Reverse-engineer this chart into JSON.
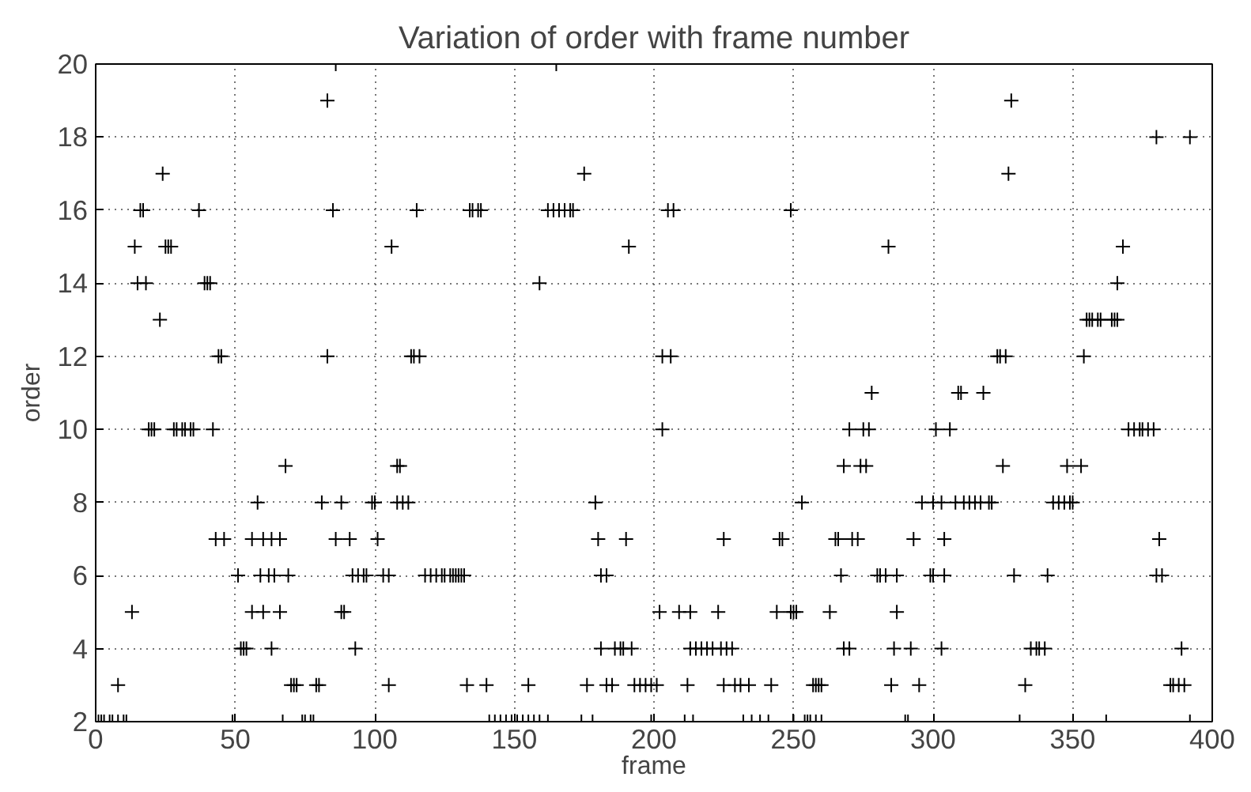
{
  "chart_data": {
    "type": "scatter",
    "title": "Variation of order with frame number",
    "xlabel": "frame",
    "ylabel": "order",
    "xlim": [
      0,
      400
    ],
    "ylim": [
      2,
      20
    ],
    "xticks": [
      0,
      50,
      100,
      150,
      200,
      250,
      300,
      350,
      400
    ],
    "yticks": [
      2,
      4,
      6,
      8,
      10,
      12,
      14,
      16,
      18,
      20
    ],
    "grid": true,
    "marker": "cross",
    "series": [
      {
        "color": "#000000",
        "x": [
          86,
          165,
          83,
          328,
          380,
          392,
          24,
          175,
          327,
          16,
          17,
          37,
          85,
          115,
          134,
          135,
          137,
          138,
          162,
          164,
          166,
          168,
          170,
          171,
          205,
          207,
          249,
          14,
          25,
          26,
          27,
          106,
          191,
          284,
          368,
          15,
          18,
          39,
          40,
          41,
          159,
          366,
          23,
          355,
          356,
          357,
          359,
          360,
          364,
          365,
          366,
          44,
          45,
          83,
          113,
          114,
          116,
          203,
          206,
          323,
          324,
          326,
          354,
          278,
          309,
          310,
          318,
          19,
          20,
          21,
          28,
          29,
          31,
          32,
          34,
          35,
          42,
          203,
          270,
          275,
          277,
          301,
          306,
          370,
          372,
          374,
          375,
          377,
          379,
          68,
          108,
          109,
          268,
          274,
          276,
          325,
          348,
          353,
          58,
          81,
          88,
          99,
          100,
          108,
          110,
          112,
          179,
          253,
          296,
          300,
          303,
          308,
          311,
          313,
          315,
          317,
          320,
          321,
          343,
          345,
          347,
          349,
          350,
          43,
          46,
          56,
          60,
          63,
          66,
          86,
          91,
          101,
          180,
          190,
          225,
          245,
          246,
          265,
          266,
          271,
          273,
          293,
          304,
          381,
          51,
          59,
          62,
          64,
          69,
          92,
          94,
          96,
          97,
          103,
          105,
          118,
          120,
          122,
          124,
          125,
          127,
          128,
          129,
          130,
          131,
          132,
          181,
          183,
          267,
          280,
          281,
          283,
          287,
          299,
          300,
          304,
          329,
          341,
          380,
          382,
          13,
          56,
          60,
          66,
          88,
          89,
          202,
          209,
          213,
          223,
          244,
          249,
          250,
          251,
          263,
          287,
          52,
          53,
          54,
          63,
          93,
          181,
          186,
          188,
          189,
          192,
          213,
          215,
          217,
          219,
          221,
          224,
          226,
          228,
          268,
          270,
          286,
          292,
          303,
          335,
          337,
          338,
          340,
          389,
          8,
          70,
          71,
          72,
          79,
          80,
          105,
          133,
          140,
          155,
          176,
          183,
          185,
          193,
          195,
          197,
          199,
          201,
          212,
          225,
          229,
          231,
          234,
          242,
          257,
          258,
          259,
          260,
          285,
          295,
          333,
          385,
          386,
          388,
          390,
          1,
          2,
          3,
          5,
          6,
          8,
          10,
          11,
          49,
          67,
          74,
          75,
          77,
          78,
          141,
          143,
          145,
          147,
          149,
          151,
          153,
          155,
          157,
          159,
          162,
          174,
          178,
          199,
          211,
          214,
          232,
          235,
          238,
          241,
          250,
          254,
          255,
          256,
          258,
          260,
          290,
          291,
          331,
          362,
          392
        ],
        "values": [
          20,
          20,
          19,
          19,
          18,
          18,
          17,
          17,
          17,
          16,
          16,
          16,
          16,
          16,
          16,
          16,
          16,
          16,
          16,
          16,
          16,
          16,
          16,
          16,
          16,
          16,
          16,
          15,
          15,
          15,
          15,
          15,
          15,
          15,
          15,
          14,
          14,
          14,
          14,
          14,
          14,
          14,
          13,
          13,
          13,
          13,
          13,
          13,
          13,
          13,
          13,
          12,
          12,
          12,
          12,
          12,
          12,
          12,
          12,
          12,
          12,
          12,
          12,
          11,
          11,
          11,
          11,
          10,
          10,
          10,
          10,
          10,
          10,
          10,
          10,
          10,
          10,
          10,
          10,
          10,
          10,
          10,
          10,
          10,
          10,
          10,
          10,
          10,
          10,
          9,
          9,
          9,
          9,
          9,
          9,
          9,
          9,
          9,
          8,
          8,
          8,
          8,
          8,
          8,
          8,
          8,
          8,
          8,
          8,
          8,
          8,
          8,
          8,
          8,
          8,
          8,
          8,
          8,
          8,
          8,
          8,
          8,
          8,
          7,
          7,
          7,
          7,
          7,
          7,
          7,
          7,
          7,
          7,
          7,
          7,
          7,
          7,
          7,
          7,
          7,
          7,
          7,
          7,
          7,
          6,
          6,
          6,
          6,
          6,
          6,
          6,
          6,
          6,
          6,
          6,
          6,
          6,
          6,
          6,
          6,
          6,
          6,
          6,
          6,
          6,
          6,
          6,
          6,
          6,
          6,
          6,
          6,
          6,
          6,
          6,
          6,
          6,
          6,
          6,
          6,
          5,
          5,
          5,
          5,
          5,
          5,
          5,
          5,
          5,
          5,
          5,
          5,
          5,
          5,
          5,
          5,
          4,
          4,
          4,
          4,
          4,
          4,
          4,
          4,
          4,
          4,
          4,
          4,
          4,
          4,
          4,
          4,
          4,
          4,
          4,
          4,
          4,
          4,
          4,
          4,
          4,
          4,
          4,
          4,
          3,
          3,
          3,
          3,
          3,
          3,
          3,
          3,
          3,
          3,
          3,
          3,
          3,
          3,
          3,
          3,
          3,
          3,
          3,
          3,
          3,
          3,
          3,
          3,
          3,
          3,
          3,
          3,
          3,
          3,
          3,
          3,
          3,
          3,
          3,
          2,
          2,
          2,
          2,
          2,
          2,
          2,
          2,
          2,
          2,
          2,
          2,
          2,
          2,
          2,
          2,
          2,
          2,
          2,
          2,
          2,
          2,
          2,
          2,
          2,
          2,
          2,
          2,
          2,
          2,
          2,
          2,
          2,
          2,
          2,
          2,
          2,
          2,
          2,
          2,
          2,
          2,
          2,
          2,
          2
        ]
      }
    ]
  }
}
